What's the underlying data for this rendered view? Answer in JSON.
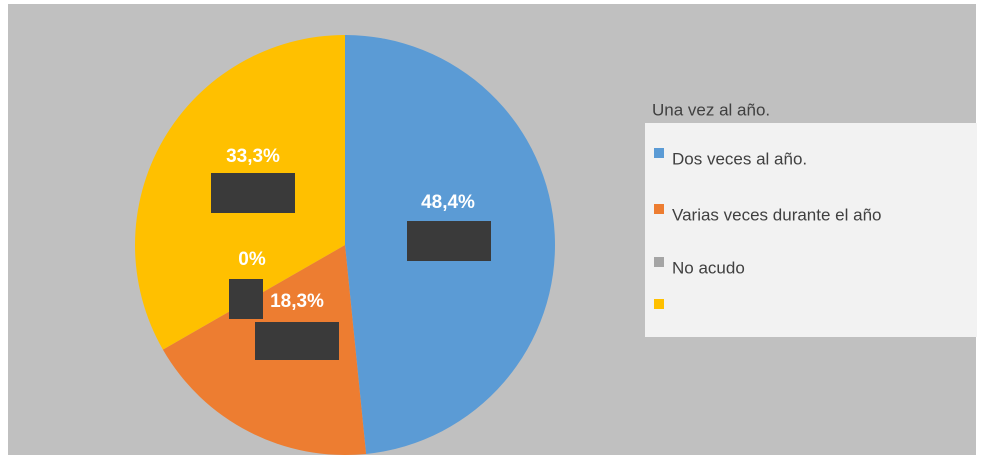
{
  "chart_data": {
    "type": "pie",
    "categories": [
      "Una vez al año.",
      "Dos veces al año.",
      "Varias veces durante el año",
      "No acudo"
    ],
    "values": [
      48.4,
      18.3,
      0,
      33.3
    ],
    "value_labels": [
      "48,4%",
      "18,3%",
      "0%",
      "33,3%"
    ],
    "colors": [
      "#5b9bd5",
      "#ed7d31",
      "#a5a5a5",
      "#ffc000"
    ]
  }
}
